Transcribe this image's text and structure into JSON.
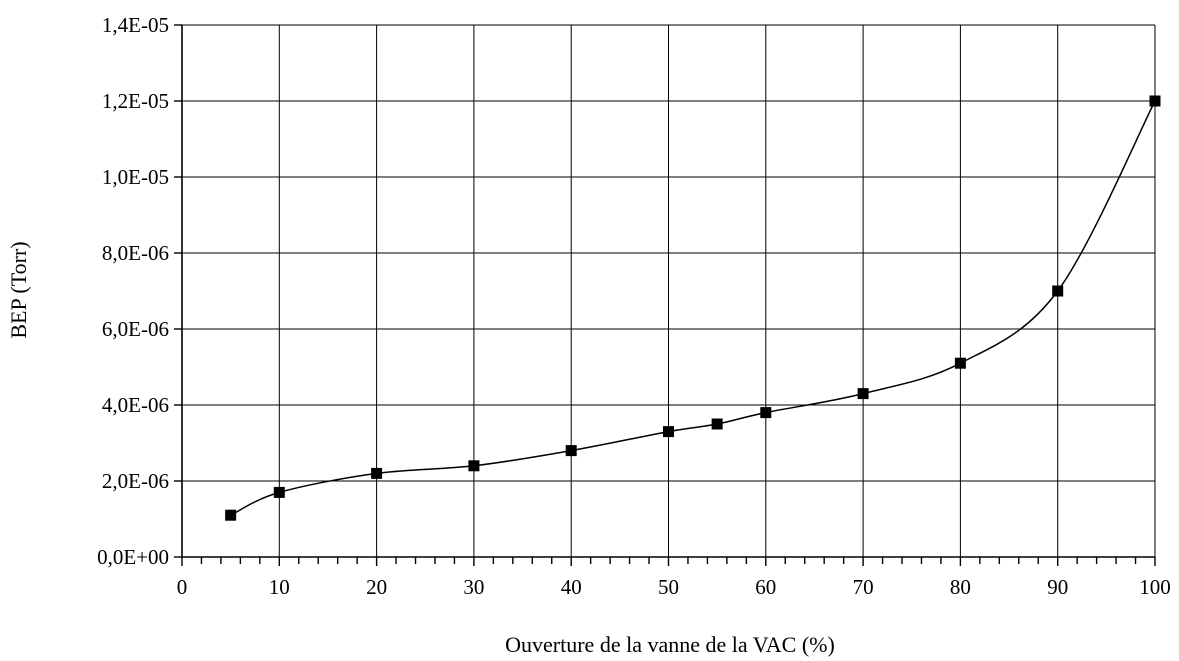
{
  "chart_data": {
    "type": "scatter",
    "title": "",
    "xlabel": "Ouverture de la vanne de la VAC (%)",
    "ylabel": "BEP (Torr)",
    "xlim": [
      0,
      100
    ],
    "ylim": [
      0,
      1.4e-05
    ],
    "x_ticks": [
      0,
      10,
      20,
      30,
      40,
      50,
      60,
      70,
      80,
      90,
      100
    ],
    "x_tick_labels": [
      "0",
      "10",
      "20",
      "30",
      "40",
      "50",
      "60",
      "70",
      "80",
      "90",
      "100"
    ],
    "y_ticks": [
      0,
      2e-06,
      4e-06,
      6e-06,
      8e-06,
      1e-05,
      1.2e-05,
      1.4e-05
    ],
    "y_tick_labels": [
      "0,0E+00",
      "2,0E-06",
      "4,0E-06",
      "6,0E-06",
      "8,0E-06",
      "1,0E-05",
      "1,2E-05",
      "1,4E-05"
    ],
    "x_minor_step": 2,
    "grid": true,
    "legend": "none",
    "marker": "square",
    "line": "smooth",
    "series": [
      {
        "x": [
          5,
          10,
          20,
          30,
          40,
          50,
          55,
          60,
          70,
          80,
          90,
          100
        ],
        "y": [
          1.1e-06,
          1.7e-06,
          2.2e-06,
          2.4e-06,
          2.8e-06,
          3.3e-06,
          3.5e-06,
          3.8e-06,
          4.3e-06,
          5.1e-06,
          7e-06,
          1.2e-05
        ]
      }
    ],
    "colors": {
      "line": "#000000",
      "marker": "#000000",
      "grid": "#000000",
      "background": "#ffffff"
    }
  }
}
